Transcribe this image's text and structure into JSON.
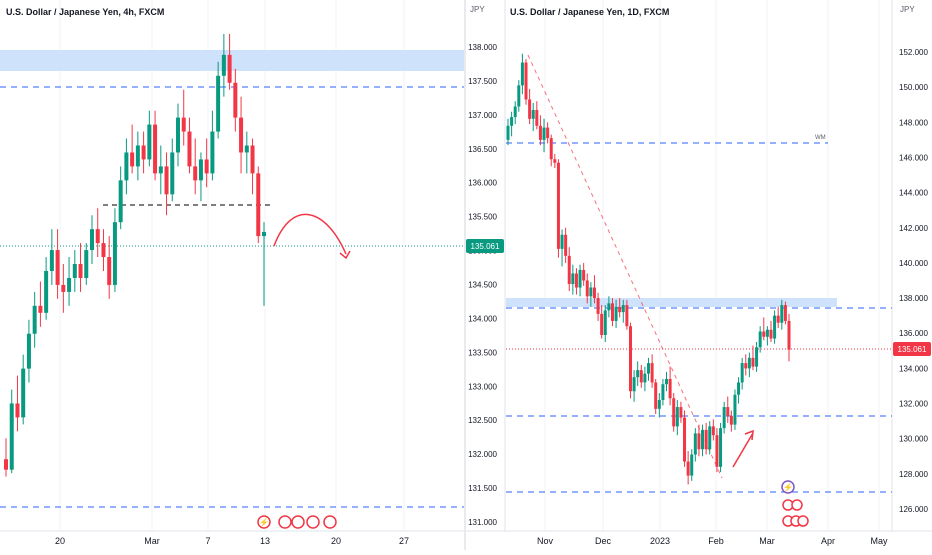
{
  "left_panel": {
    "title": "U.S. Dollar / Japanese Yen, 4h, FXCM",
    "price_badge": "135.061",
    "x_ticks": [
      "20",
      "Mar",
      "7",
      "13",
      "20",
      "27"
    ],
    "colors": {
      "up": "#089981",
      "down": "#f23645",
      "zone": "#cfe2fb",
      "dashed": "#2962ff",
      "arrow": "#f23645",
      "badge": "#089981"
    }
  },
  "right_panel": {
    "title": "U.S. Dollar / Japanese Yen, 1D, FXCM",
    "currency_left": "JPY",
    "currency_right": "JPY",
    "left_axis": [
      "138.000",
      "137.500",
      "137.000",
      "136.500",
      "136.000",
      "135.500",
      "135.000",
      "134.500",
      "134.000",
      "133.500",
      "133.000",
      "132.500",
      "132.000",
      "131.500",
      "131.000"
    ],
    "right_axis": [
      "152.000",
      "150.000",
      "148.000",
      "146.000",
      "144.000",
      "142.000",
      "140.000",
      "138.000",
      "136.000",
      "134.000",
      "132.000",
      "130.000",
      "128.000",
      "126.000"
    ],
    "price_badge": "135.061",
    "x_ticks": [
      "Nov",
      "Dec",
      "2023",
      "Feb",
      "Mar",
      "Apr",
      "May"
    ],
    "wm_label": "WM",
    "colors": {
      "up": "#089981",
      "down": "#f23645",
      "zone": "#cfe2fb",
      "dashed": "#2962ff",
      "badge": "#f23645",
      "arrow": "#f23645"
    }
  },
  "chart_data": [
    {
      "type": "candlestick",
      "title": "U.S. Dollar / Japanese Yen, 4h, FXCM",
      "x_ticks": [
        "20",
        "Mar",
        "7",
        "13",
        "20",
        "27"
      ],
      "y_visible_range": [
        131.0,
        138.1
      ],
      "last_price": 135.061,
      "resistance_zone": [
        137.7,
        138.0
      ],
      "horizontal_levels": [
        137.4,
        135.65,
        131.45
      ],
      "candles": [
        [
          131.8,
          132.1,
          131.55,
          131.65
        ],
        [
          131.65,
          132.8,
          131.6,
          132.6
        ],
        [
          132.6,
          133.0,
          132.2,
          132.4
        ],
        [
          132.4,
          133.3,
          132.3,
          133.1
        ],
        [
          133.1,
          133.8,
          132.9,
          133.6
        ],
        [
          133.6,
          134.2,
          133.4,
          134.0
        ],
        [
          134.0,
          134.35,
          133.7,
          133.9
        ],
        [
          133.9,
          134.7,
          133.8,
          134.5
        ],
        [
          134.5,
          135.1,
          134.3,
          134.8
        ],
        [
          134.8,
          135.1,
          134.1,
          134.3
        ],
        [
          134.3,
          134.6,
          133.9,
          134.2
        ],
        [
          134.2,
          134.7,
          134.0,
          134.4
        ],
        [
          134.4,
          134.8,
          134.2,
          134.6
        ],
        [
          134.6,
          134.9,
          134.2,
          134.4
        ],
        [
          134.4,
          134.9,
          134.3,
          134.8
        ],
        [
          134.8,
          135.3,
          134.6,
          135.1
        ],
        [
          135.1,
          135.4,
          134.7,
          134.9
        ],
        [
          134.9,
          135.1,
          134.5,
          134.7
        ],
        [
          134.7,
          135.0,
          134.1,
          134.3
        ],
        [
          134.3,
          135.4,
          134.2,
          135.2
        ],
        [
          135.2,
          136.0,
          135.1,
          135.8
        ],
        [
          135.8,
          136.4,
          135.6,
          136.2
        ],
        [
          136.2,
          136.6,
          135.9,
          136.0
        ],
        [
          136.0,
          136.5,
          135.8,
          136.3
        ],
        [
          136.3,
          136.5,
          135.9,
          136.1
        ],
        [
          136.1,
          136.8,
          136.0,
          136.6
        ],
        [
          136.6,
          136.8,
          135.8,
          135.9
        ],
        [
          135.9,
          136.3,
          135.6,
          136.0
        ],
        [
          136.0,
          136.2,
          135.3,
          135.6
        ],
        [
          135.6,
          136.4,
          135.5,
          136.2
        ],
        [
          136.2,
          136.9,
          136.0,
          136.7
        ],
        [
          136.7,
          137.1,
          136.3,
          136.5
        ],
        [
          136.5,
          136.7,
          135.9,
          136.0
        ],
        [
          136.0,
          136.4,
          135.6,
          135.8
        ],
        [
          135.8,
          136.2,
          135.5,
          136.1
        ],
        [
          136.1,
          136.4,
          135.7,
          135.9
        ],
        [
          135.9,
          136.8,
          135.8,
          136.5
        ],
        [
          136.5,
          137.5,
          136.4,
          137.3
        ],
        [
          137.3,
          137.9,
          137.0,
          137.6
        ],
        [
          137.6,
          137.9,
          137.1,
          137.2
        ],
        [
          137.2,
          137.4,
          136.5,
          136.7
        ],
        [
          136.7,
          137.0,
          135.9,
          136.2
        ],
        [
          136.2,
          136.5,
          135.9,
          136.3
        ],
        [
          136.3,
          136.4,
          135.6,
          135.9
        ],
        [
          135.9,
          136.0,
          134.9,
          135.0
        ],
        [
          135.0,
          135.2,
          134.0,
          135.06
        ]
      ]
    },
    {
      "type": "candlestick",
      "title": "U.S. Dollar / Japanese Yen, 1D, FXCM",
      "x_ticks": [
        "Nov",
        "Dec",
        "2023",
        "Feb",
        "Mar",
        "Apr",
        "May"
      ],
      "y_axis_left_range": [
        131.0,
        138.0
      ],
      "y_axis_right_range": [
        126.0,
        152.0
      ],
      "last_price": 135.061,
      "resistance_zone": [
        137.6,
        138.0
      ],
      "horizontal_levels": [
        146.6,
        137.4,
        131.3,
        127.0
      ],
      "horizontal_level_label": "WM",
      "candles": [
        [
          147.0,
          148.2,
          146.7,
          147.8
        ],
        [
          147.8,
          148.6,
          147.2,
          148.3
        ],
        [
          148.3,
          149.2,
          147.9,
          148.9
        ],
        [
          148.9,
          150.4,
          148.6,
          150.1
        ],
        [
          150.1,
          151.9,
          149.6,
          151.4
        ],
        [
          151.4,
          151.6,
          149.0,
          149.3
        ],
        [
          149.3,
          149.9,
          147.9,
          148.2
        ],
        [
          148.2,
          149.1,
          147.5,
          148.7
        ],
        [
          148.7,
          149.2,
          147.6,
          147.8
        ],
        [
          147.8,
          148.4,
          146.7,
          147.0
        ],
        [
          147.0,
          148.2,
          146.3,
          147.7
        ],
        [
          147.7,
          148.0,
          146.8,
          147.1
        ],
        [
          147.1,
          147.3,
          145.5,
          145.9
        ],
        [
          145.9,
          146.2,
          145.4,
          145.7
        ],
        [
          145.7,
          145.9,
          140.3,
          140.8
        ],
        [
          140.8,
          141.9,
          139.8,
          141.6
        ],
        [
          141.6,
          142.0,
          140.0,
          140.4
        ],
        [
          140.4,
          140.9,
          138.4,
          138.8
        ],
        [
          138.8,
          139.9,
          138.2,
          139.4
        ],
        [
          139.4,
          139.7,
          138.2,
          138.6
        ],
        [
          138.6,
          139.9,
          138.1,
          139.6
        ],
        [
          139.6,
          140.0,
          138.7,
          139.0
        ],
        [
          139.0,
          139.4,
          137.7,
          138.1
        ],
        [
          138.1,
          138.9,
          137.5,
          138.6
        ],
        [
          138.6,
          139.3,
          137.7,
          138.0
        ],
        [
          138.0,
          138.3,
          136.7,
          137.1
        ],
        [
          137.1,
          137.6,
          135.7,
          135.9
        ],
        [
          135.9,
          137.6,
          135.5,
          137.3
        ],
        [
          137.3,
          138.1,
          136.9,
          137.7
        ],
        [
          137.7,
          138.0,
          136.4,
          136.7
        ],
        [
          136.7,
          137.9,
          136.3,
          137.5
        ],
        [
          137.5,
          138.0,
          136.9,
          137.2
        ],
        [
          137.2,
          137.9,
          136.6,
          137.6
        ],
        [
          137.6,
          137.9,
          136.2,
          136.4
        ],
        [
          136.4,
          136.6,
          132.3,
          132.7
        ],
        [
          132.7,
          133.9,
          132.1,
          133.5
        ],
        [
          133.5,
          134.4,
          133.0,
          133.9
        ],
        [
          133.9,
          134.2,
          132.9,
          133.2
        ],
        [
          133.2,
          134.1,
          132.7,
          133.7
        ],
        [
          133.7,
          134.6,
          133.3,
          134.3
        ],
        [
          134.3,
          134.8,
          132.9,
          133.2
        ],
        [
          133.2,
          133.4,
          131.4,
          131.7
        ],
        [
          131.7,
          132.6,
          131.2,
          132.2
        ],
        [
          132.2,
          133.4,
          131.9,
          133.1
        ],
        [
          133.1,
          133.8,
          132.7,
          133.4
        ],
        [
          133.4,
          134.1,
          131.9,
          132.3
        ],
        [
          132.3,
          132.6,
          130.4,
          130.7
        ],
        [
          130.7,
          132.2,
          130.2,
          131.8
        ],
        [
          131.8,
          132.1,
          130.9,
          131.2
        ],
        [
          131.2,
          131.6,
          128.4,
          128.7
        ],
        [
          128.7,
          129.3,
          127.4,
          127.9
        ],
        [
          127.9,
          129.4,
          127.6,
          129.1
        ],
        [
          129.1,
          130.6,
          128.7,
          130.3
        ],
        [
          130.3,
          130.8,
          129.0,
          129.4
        ],
        [
          129.4,
          130.8,
          129.0,
          130.5
        ],
        [
          130.5,
          130.9,
          129.1,
          129.4
        ],
        [
          129.4,
          131.0,
          129.1,
          130.7
        ],
        [
          130.7,
          131.1,
          129.9,
          130.2
        ],
        [
          130.2,
          130.6,
          128.1,
          128.4
        ],
        [
          128.4,
          130.9,
          128.1,
          130.6
        ],
        [
          130.6,
          132.1,
          130.3,
          131.8
        ],
        [
          131.8,
          132.4,
          130.9,
          131.3
        ],
        [
          131.3,
          131.6,
          130.4,
          130.8
        ],
        [
          130.8,
          132.8,
          130.5,
          132.5
        ],
        [
          132.5,
          133.5,
          132.0,
          133.2
        ],
        [
          133.2,
          134.6,
          132.8,
          134.3
        ],
        [
          134.3,
          134.8,
          133.6,
          134.0
        ],
        [
          134.0,
          134.9,
          133.5,
          134.6
        ],
        [
          134.6,
          135.3,
          133.9,
          134.1
        ],
        [
          134.1,
          135.5,
          133.8,
          135.2
        ],
        [
          135.2,
          136.4,
          134.9,
          136.1
        ],
        [
          136.1,
          136.9,
          135.6,
          135.8
        ],
        [
          135.8,
          136.4,
          135.3,
          136.2
        ],
        [
          136.2,
          136.7,
          135.5,
          135.7
        ],
        [
          135.7,
          137.3,
          135.4,
          137.0
        ],
        [
          137.0,
          137.5,
          136.3,
          136.6
        ],
        [
          136.6,
          137.9,
          136.2,
          137.6
        ],
        [
          137.6,
          137.8,
          136.5,
          136.7
        ],
        [
          136.7,
          137.1,
          134.4,
          135.06
        ]
      ]
    }
  ]
}
